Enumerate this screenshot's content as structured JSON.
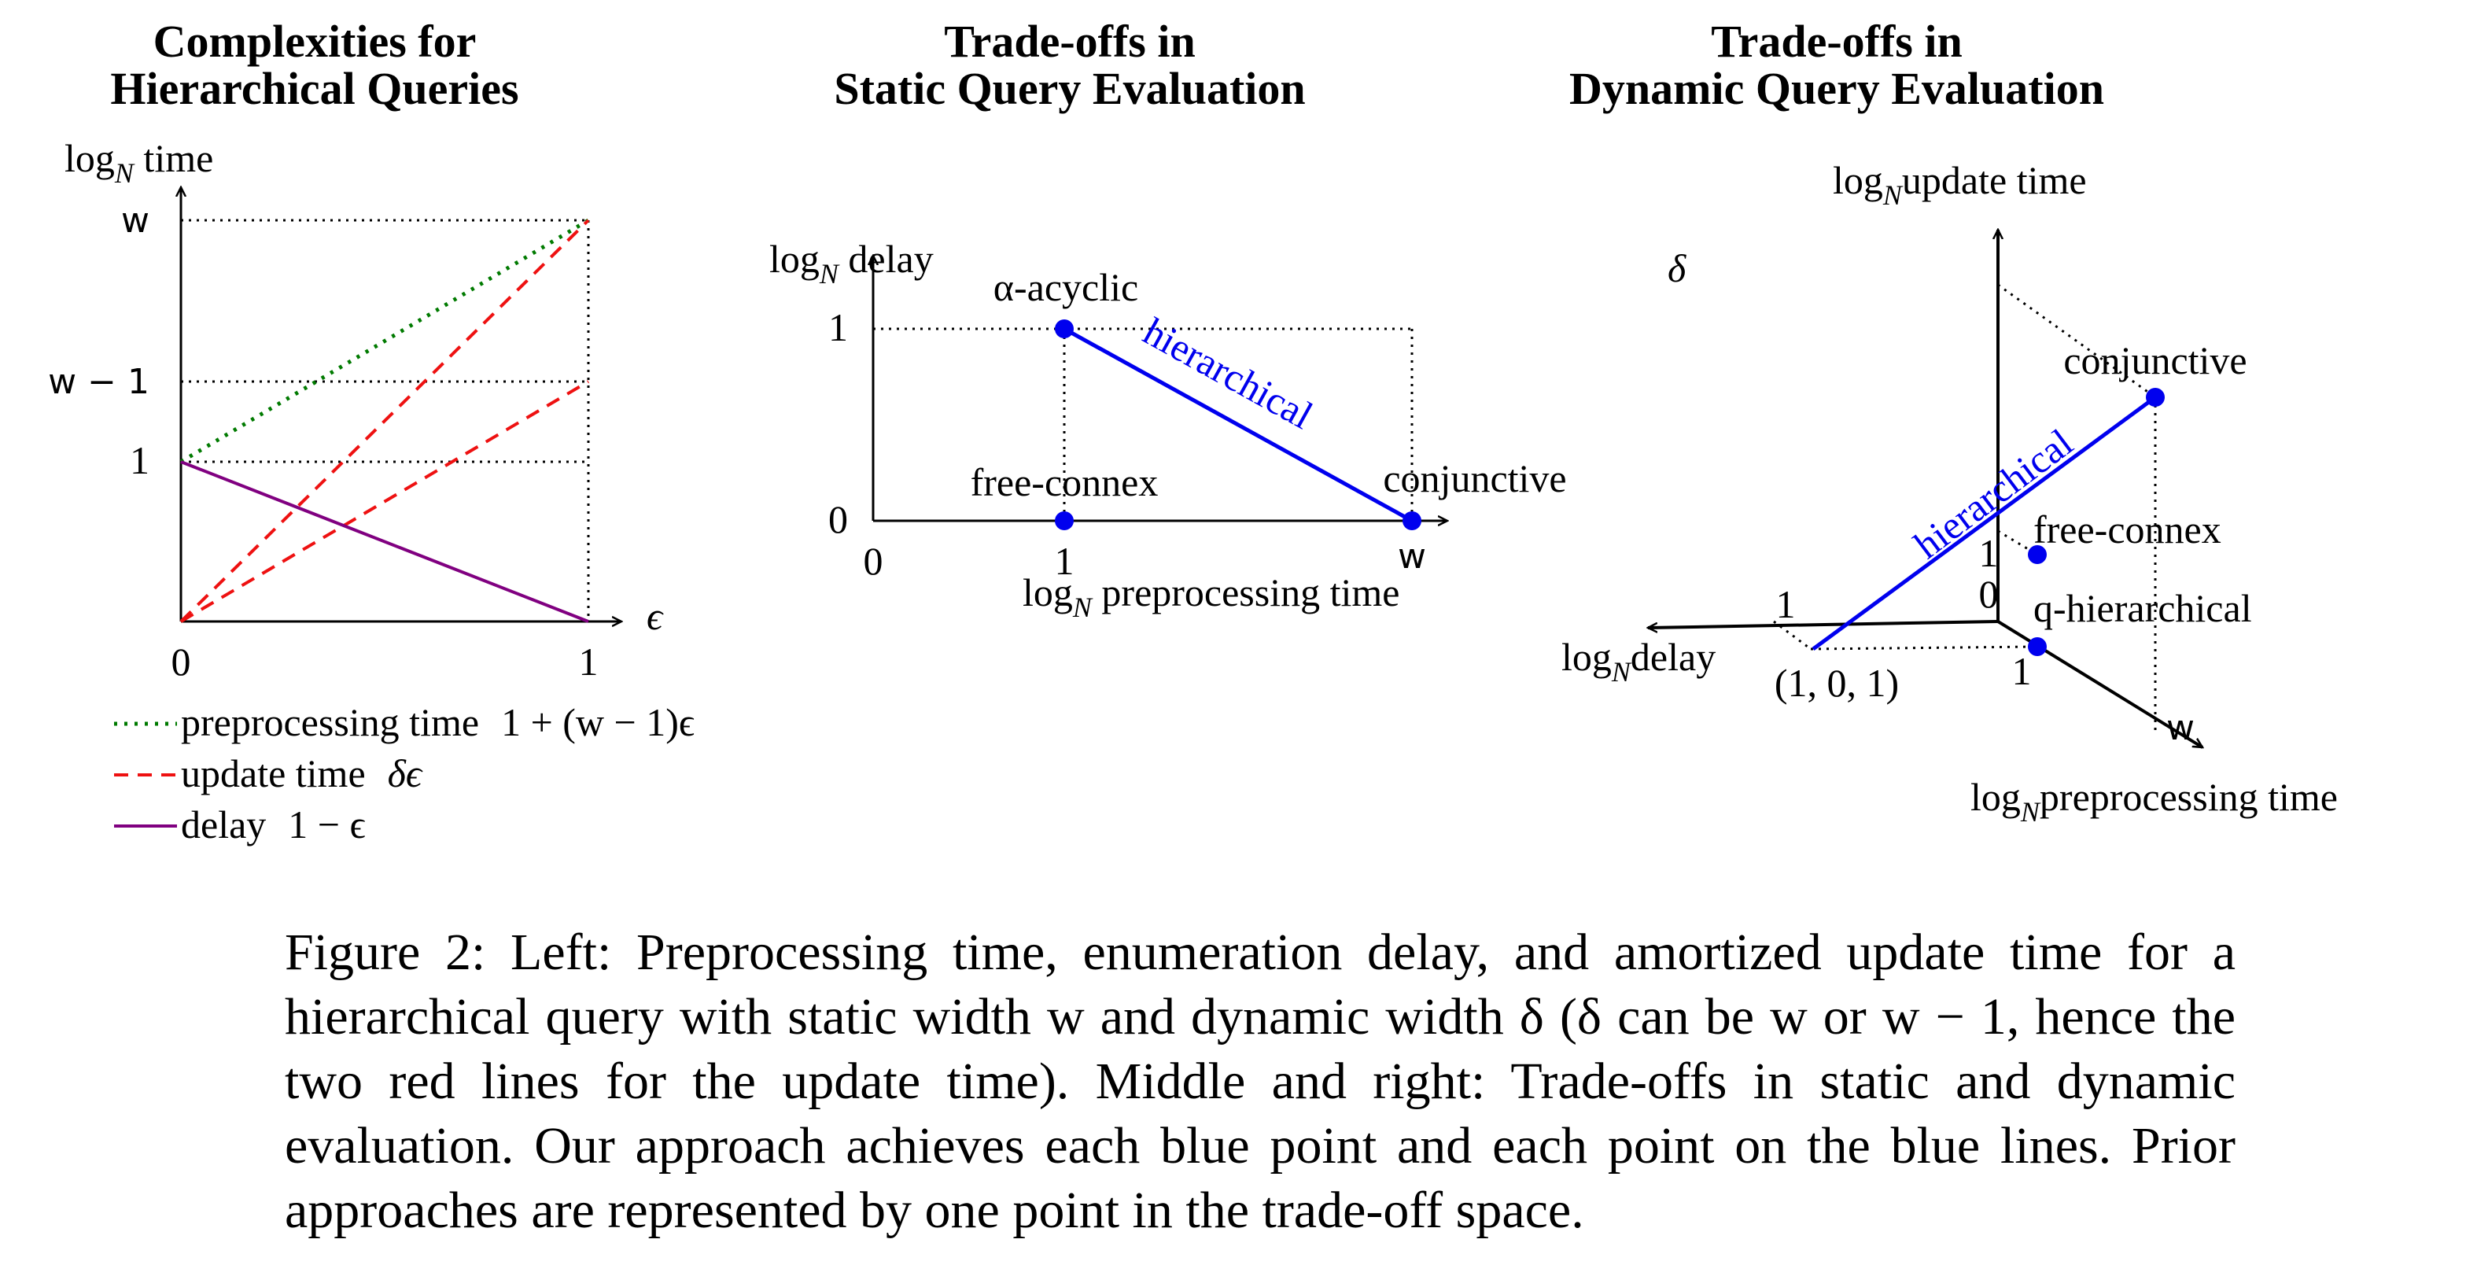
{
  "colors": {
    "blue": "#0000ee",
    "green": "#007a00",
    "red": "#ee1111",
    "purple": "#800080",
    "axis": "#000000"
  },
  "left_panel": {
    "title_line1": "Complexities for",
    "title_line2": "Hierarchical Queries",
    "y_axis_label": "log",
    "y_axis_sub": "N",
    "y_axis_suffix": " time",
    "x_axis_label": "ϵ",
    "y_ticks": [
      "w",
      "w − 1",
      "1"
    ],
    "x_ticks": [
      "0",
      "1"
    ],
    "legend": [
      {
        "name": "preprocessing time",
        "formula": "1 + (w − 1)ϵ"
      },
      {
        "name": "update time",
        "formula": "δϵ"
      },
      {
        "name": "delay",
        "formula": "1 − ϵ"
      }
    ]
  },
  "middle_panel": {
    "title_line1": "Trade-offs in",
    "title_line2": "Static Query Evaluation",
    "y_axis_label": "log",
    "y_axis_sub": "N",
    "y_axis_suffix": " delay",
    "x_axis_label": "log",
    "x_axis_sub": "N",
    "x_axis_suffix": " preprocessing time",
    "y_ticks": [
      "1",
      "0"
    ],
    "x_ticks": [
      "0",
      "1",
      "w"
    ],
    "points": [
      "α-acyclic",
      "free-connex",
      "conjunctive"
    ],
    "line_label": "hierarchical"
  },
  "right_panel": {
    "title_line1": "Trade-offs in",
    "title_line2": "Dynamic Query Evaluation",
    "z_axis_label": "log",
    "z_axis_sub": "N",
    "z_axis_suffix": "update time",
    "x_axis_label": "log",
    "x_axis_sub": "N",
    "x_axis_suffix": "delay",
    "y_axis_label": "log",
    "y_axis_sub": "N",
    "y_axis_suffix": "preprocessing time",
    "tick_delta": "δ",
    "tick_w": "w",
    "tick_one_x": "1",
    "tick_one_y": "1",
    "tick_one_z": "1",
    "tick_zero": "0",
    "point_coord": "(1, 0, 1)",
    "points": [
      "conjunctive",
      "free-connex",
      "q-hierarchical"
    ],
    "line_label": "hierarchical"
  },
  "chart_data": [
    {
      "type": "line",
      "title": "Complexities for Hierarchical Queries",
      "xlabel": "ϵ",
      "ylabel": "log_N time",
      "xlim": [
        0,
        1
      ],
      "ytick_labels": [
        "1",
        "w − 1",
        "w"
      ],
      "series": [
        {
          "name": "preprocessing time 1 + (w − 1)ϵ",
          "points": [
            [
              0,
              "1"
            ],
            [
              1,
              "w"
            ]
          ]
        },
        {
          "name": "update time δϵ",
          "points": [
            [
              0,
              "0"
            ],
            [
              1,
              "w"
            ]
          ]
        },
        {
          "name": "update time δϵ",
          "points": [
            [
              0,
              "0"
            ],
            [
              1,
              "w − 1"
            ]
          ]
        },
        {
          "name": "delay 1 − ϵ",
          "points": [
            [
              0,
              "1"
            ],
            [
              1,
              "0"
            ]
          ]
        }
      ]
    },
    {
      "type": "scatter",
      "title": "Trade-offs in Static Query Evaluation",
      "xlabel": "log_N preprocessing time",
      "ylabel": "log_N delay",
      "points": [
        {
          "label": "α-acyclic",
          "x": "1",
          "y": "1"
        },
        {
          "label": "free-connex",
          "x": "1",
          "y": "0"
        },
        {
          "label": "conjunctive",
          "x": "w",
          "y": "0"
        }
      ],
      "line": {
        "label": "hierarchical",
        "from": "α-acyclic",
        "to": "conjunctive"
      }
    },
    {
      "type": "scatter",
      "title": "Trade-offs in Dynamic Query Evaluation",
      "axes": [
        "log_N delay",
        "log_N preprocessing time",
        "log_N update time"
      ],
      "points": [
        {
          "label": "conjunctive",
          "delay": "0",
          "preprocessing": "w",
          "update": "δ"
        },
        {
          "label": "free-connex",
          "delay": "0",
          "preprocessing": "1",
          "update": "1"
        },
        {
          "label": "q-hierarchical",
          "delay": "0",
          "preprocessing": "1",
          "update": "0"
        }
      ],
      "line": {
        "label": "hierarchical",
        "from": "(1, 0, 1)",
        "to": "conjunctive"
      }
    }
  ],
  "caption": "Figure 2: Left: Preprocessing time, enumeration delay, and amortized update time for a hierarchical query with static width w and dynamic width δ (δ can be w or w − 1, hence the two red lines for the update time). Middle and right: Trade-offs in static and dynamic evaluation. Our approach achieves each blue point and each point on the blue lines. Prior approaches are represented by one point in the trade-off space."
}
